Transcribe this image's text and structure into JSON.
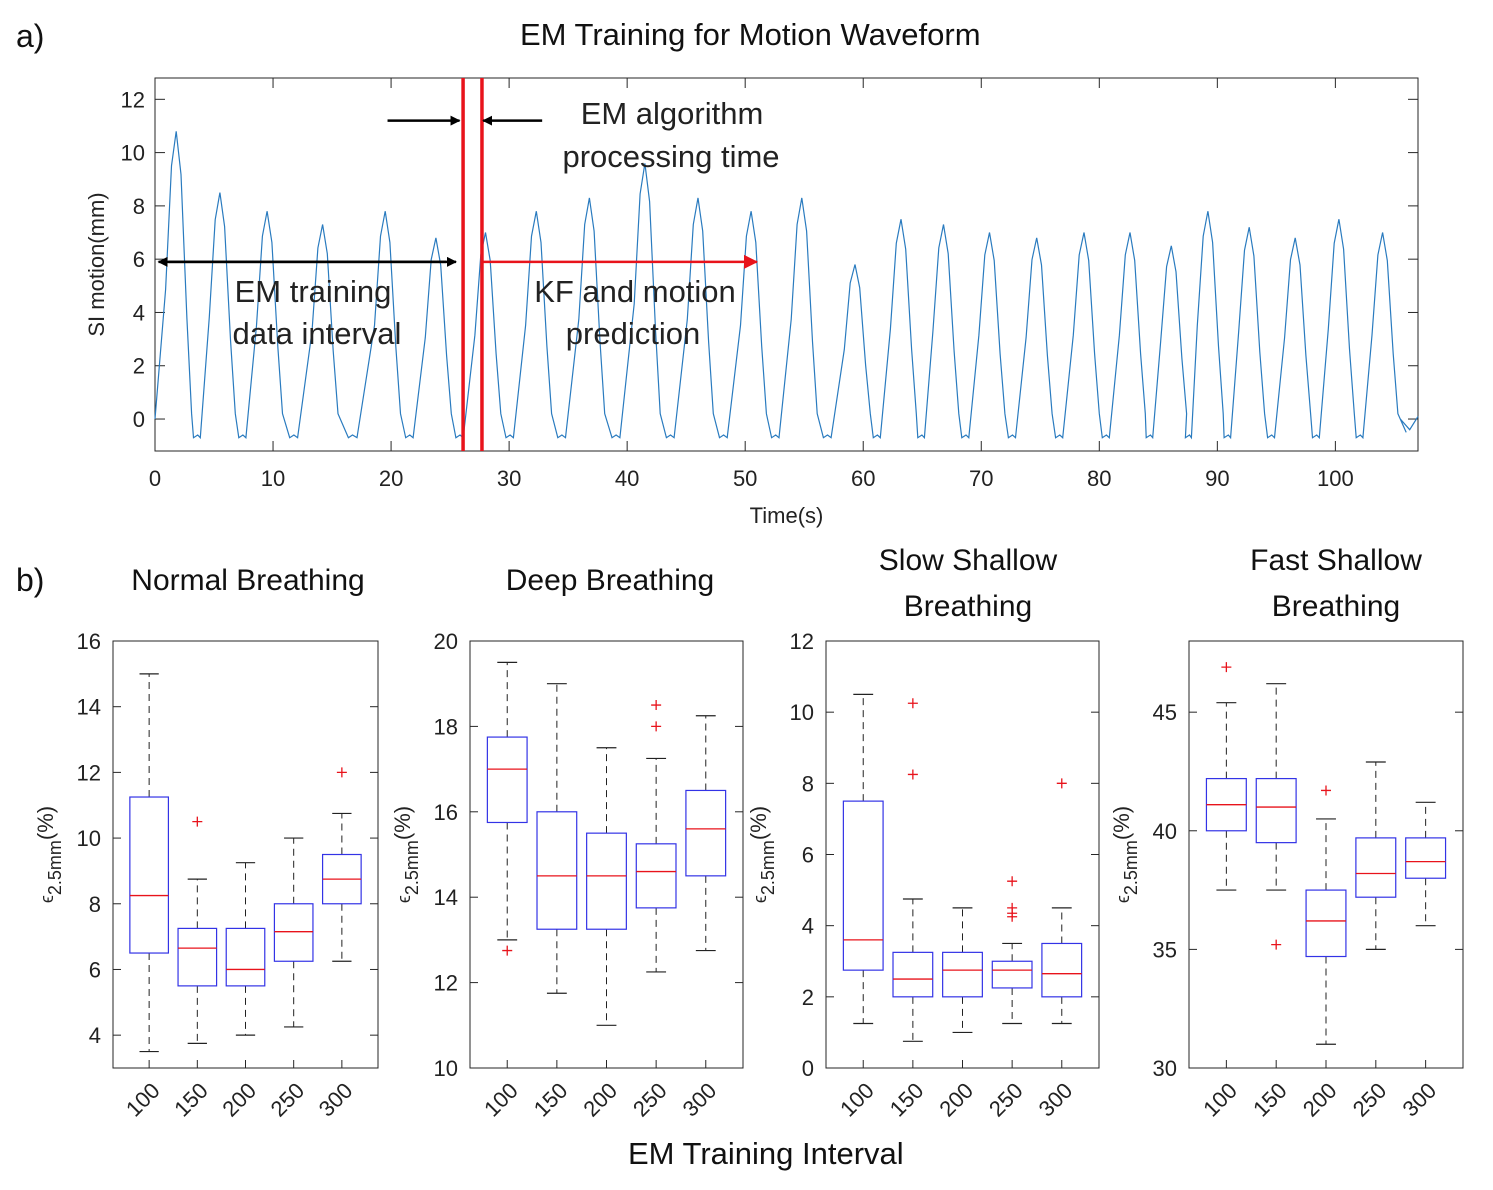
{
  "figure": {
    "panel_a_letter": "a)",
    "panel_b_letter": "b)",
    "bottom_xlabel": "EM Training Interval"
  },
  "chart_data": [
    {
      "type": "line",
      "title": "EM Training for Motion Waveform",
      "xlabel": "Time(s)",
      "ylabel": "SI motion(mm)",
      "xlim": [
        0,
        107
      ],
      "ylim": [
        -1.2,
        12.8
      ],
      "xticks": [
        0,
        10,
        20,
        30,
        40,
        50,
        60,
        70,
        80,
        90,
        100
      ],
      "yticks": [
        0,
        2,
        4,
        6,
        8,
        10,
        12
      ],
      "series": [
        {
          "name": "SI motion",
          "color": "#2a7bbf",
          "baseline": -0.7,
          "peaks": [
            {
              "t": 1.8,
              "y": 10.8
            },
            {
              "t": 5.5,
              "y": 8.5
            },
            {
              "t": 9.5,
              "y": 7.8
            },
            {
              "t": 14.2,
              "y": 7.3
            },
            {
              "t": 19.5,
              "y": 7.8
            },
            {
              "t": 23.8,
              "y": 6.8
            },
            {
              "t": 28.0,
              "y": 7.0
            },
            {
              "t": 32.3,
              "y": 7.8
            },
            {
              "t": 36.8,
              "y": 8.3
            },
            {
              "t": 41.5,
              "y": 9.6
            },
            {
              "t": 46.0,
              "y": 8.3
            },
            {
              "t": 50.5,
              "y": 7.8
            },
            {
              "t": 54.8,
              "y": 8.3
            },
            {
              "t": 59.3,
              "y": 5.8
            },
            {
              "t": 63.2,
              "y": 7.5
            },
            {
              "t": 66.8,
              "y": 7.3
            },
            {
              "t": 70.7,
              "y": 7.0
            },
            {
              "t": 74.7,
              "y": 6.8
            },
            {
              "t": 78.7,
              "y": 7.0
            },
            {
              "t": 82.6,
              "y": 7.0
            },
            {
              "t": 86.1,
              "y": 6.5
            },
            {
              "t": 89.2,
              "y": 7.8
            },
            {
              "t": 92.7,
              "y": 7.2
            },
            {
              "t": 96.6,
              "y": 6.8
            },
            {
              "t": 100.3,
              "y": 7.5
            },
            {
              "t": 104.0,
              "y": 7.0
            }
          ]
        }
      ],
      "annotations": {
        "training_arrow": {
          "from_x": 0.3,
          "to_x": 25.5,
          "y": 5.9
        },
        "prediction_arrow": {
          "from_x": 27.6,
          "to_x": 51.0,
          "y": 5.9
        },
        "red_lines_x": [
          26.1,
          27.7
        ],
        "processing_arrows": {
          "left_from_x": 19.7,
          "left_to_x": 25.8,
          "right_from_x": 32.8,
          "right_to_x": 27.8,
          "y": 11.2
        },
        "processing_text_1": "EM algorithm",
        "processing_text_2": "processing time",
        "training_text_1": "EM training",
        "training_text_2": "data interval",
        "prediction_text_1": "KF and motion",
        "prediction_text_2": "prediction"
      }
    },
    {
      "type": "box",
      "title": "Normal Breathing",
      "ylabel_main": "ϵ",
      "ylabel_sub": "2.5mm",
      "ylabel_unit": "(%)",
      "categories": [
        "100",
        "150",
        "200",
        "250",
        "300"
      ],
      "ylim": [
        3,
        16
      ],
      "yticks": [
        4,
        6,
        8,
        10,
        12,
        14,
        16
      ],
      "boxes": [
        {
          "whislo": 3.5,
          "q1": 6.5,
          "med": 8.25,
          "q3": 11.25,
          "whishi": 15.0,
          "fliers": []
        },
        {
          "whislo": 3.75,
          "q1": 5.5,
          "med": 6.65,
          "q3": 7.25,
          "whishi": 8.75,
          "fliers": [
            10.5
          ]
        },
        {
          "whislo": 4.0,
          "q1": 5.5,
          "med": 6.0,
          "q3": 7.25,
          "whishi": 9.25,
          "fliers": []
        },
        {
          "whislo": 4.25,
          "q1": 6.25,
          "med": 7.15,
          "q3": 8.0,
          "whishi": 10.0,
          "fliers": []
        },
        {
          "whislo": 6.25,
          "q1": 8.0,
          "med": 8.75,
          "q3": 9.5,
          "whishi": 10.75,
          "fliers": [
            12.0
          ]
        }
      ]
    },
    {
      "type": "box",
      "title": "Deep Breathing",
      "ylabel_main": "ϵ",
      "ylabel_sub": "2.5mm",
      "ylabel_unit": "(%)",
      "categories": [
        "100",
        "150",
        "200",
        "250",
        "300"
      ],
      "ylim": [
        10,
        20
      ],
      "yticks": [
        10,
        12,
        14,
        16,
        18,
        20
      ],
      "boxes": [
        {
          "whislo": 13.0,
          "q1": 15.75,
          "med": 17.0,
          "q3": 17.75,
          "whishi": 19.5,
          "fliers": [
            12.75
          ]
        },
        {
          "whislo": 11.75,
          "q1": 13.25,
          "med": 14.5,
          "q3": 16.0,
          "whishi": 19.0,
          "fliers": []
        },
        {
          "whislo": 11.0,
          "q1": 13.25,
          "med": 14.5,
          "q3": 15.5,
          "whishi": 17.5,
          "fliers": []
        },
        {
          "whislo": 12.25,
          "q1": 13.75,
          "med": 14.6,
          "q3": 15.25,
          "whishi": 17.25,
          "fliers": [
            18.0,
            18.5
          ]
        },
        {
          "whislo": 12.75,
          "q1": 14.5,
          "med": 15.6,
          "q3": 16.5,
          "whishi": 18.25,
          "fliers": []
        }
      ]
    },
    {
      "type": "box",
      "title_line1": "Slow Shallow",
      "title_line2": "Breathing",
      "ylabel_main": "ϵ",
      "ylabel_sub": "2.5mm",
      "ylabel_unit": "(%)",
      "categories": [
        "100",
        "150",
        "200",
        "250",
        "300"
      ],
      "ylim": [
        0,
        12
      ],
      "yticks": [
        0,
        2,
        4,
        6,
        8,
        10,
        12
      ],
      "boxes": [
        {
          "whislo": 1.25,
          "q1": 2.75,
          "med": 3.6,
          "q3": 7.5,
          "whishi": 10.5,
          "fliers": []
        },
        {
          "whislo": 0.75,
          "q1": 2.0,
          "med": 2.5,
          "q3": 3.25,
          "whishi": 4.75,
          "fliers": [
            8.25,
            10.25
          ]
        },
        {
          "whislo": 1.0,
          "q1": 2.0,
          "med": 2.75,
          "q3": 3.25,
          "whishi": 4.5,
          "fliers": []
        },
        {
          "whislo": 1.25,
          "q1": 2.25,
          "med": 2.75,
          "q3": 3.0,
          "whishi": 3.5,
          "fliers": [
            4.25,
            4.35,
            4.5,
            5.25
          ]
        },
        {
          "whislo": 1.25,
          "q1": 2.0,
          "med": 2.65,
          "q3": 3.5,
          "whishi": 4.5,
          "fliers": [
            8.0
          ]
        }
      ]
    },
    {
      "type": "box",
      "title_line1": "Fast Shallow",
      "title_line2": "Breathing",
      "ylabel_main": "ϵ",
      "ylabel_sub": "2.5mm",
      "ylabel_unit": "(%)",
      "categories": [
        "100",
        "150",
        "200",
        "250",
        "300"
      ],
      "ylim": [
        30,
        48
      ],
      "yticks": [
        30,
        35,
        40,
        45
      ],
      "boxes": [
        {
          "whislo": 37.5,
          "q1": 40.0,
          "med": 41.1,
          "q3": 42.2,
          "whishi": 45.4,
          "fliers": [
            46.9
          ]
        },
        {
          "whislo": 37.5,
          "q1": 39.5,
          "med": 41.0,
          "q3": 42.2,
          "whishi": 46.2,
          "fliers": [
            35.2
          ]
        },
        {
          "whislo": 31.0,
          "q1": 34.7,
          "med": 36.2,
          "q3": 37.5,
          "whishi": 40.5,
          "fliers": [
            41.7
          ]
        },
        {
          "whislo": 35.0,
          "q1": 37.2,
          "med": 38.2,
          "q3": 39.7,
          "whishi": 42.9,
          "fliers": []
        },
        {
          "whislo": 36.0,
          "q1": 38.0,
          "med": 38.7,
          "q3": 39.7,
          "whishi": 41.2,
          "fliers": []
        }
      ]
    }
  ]
}
